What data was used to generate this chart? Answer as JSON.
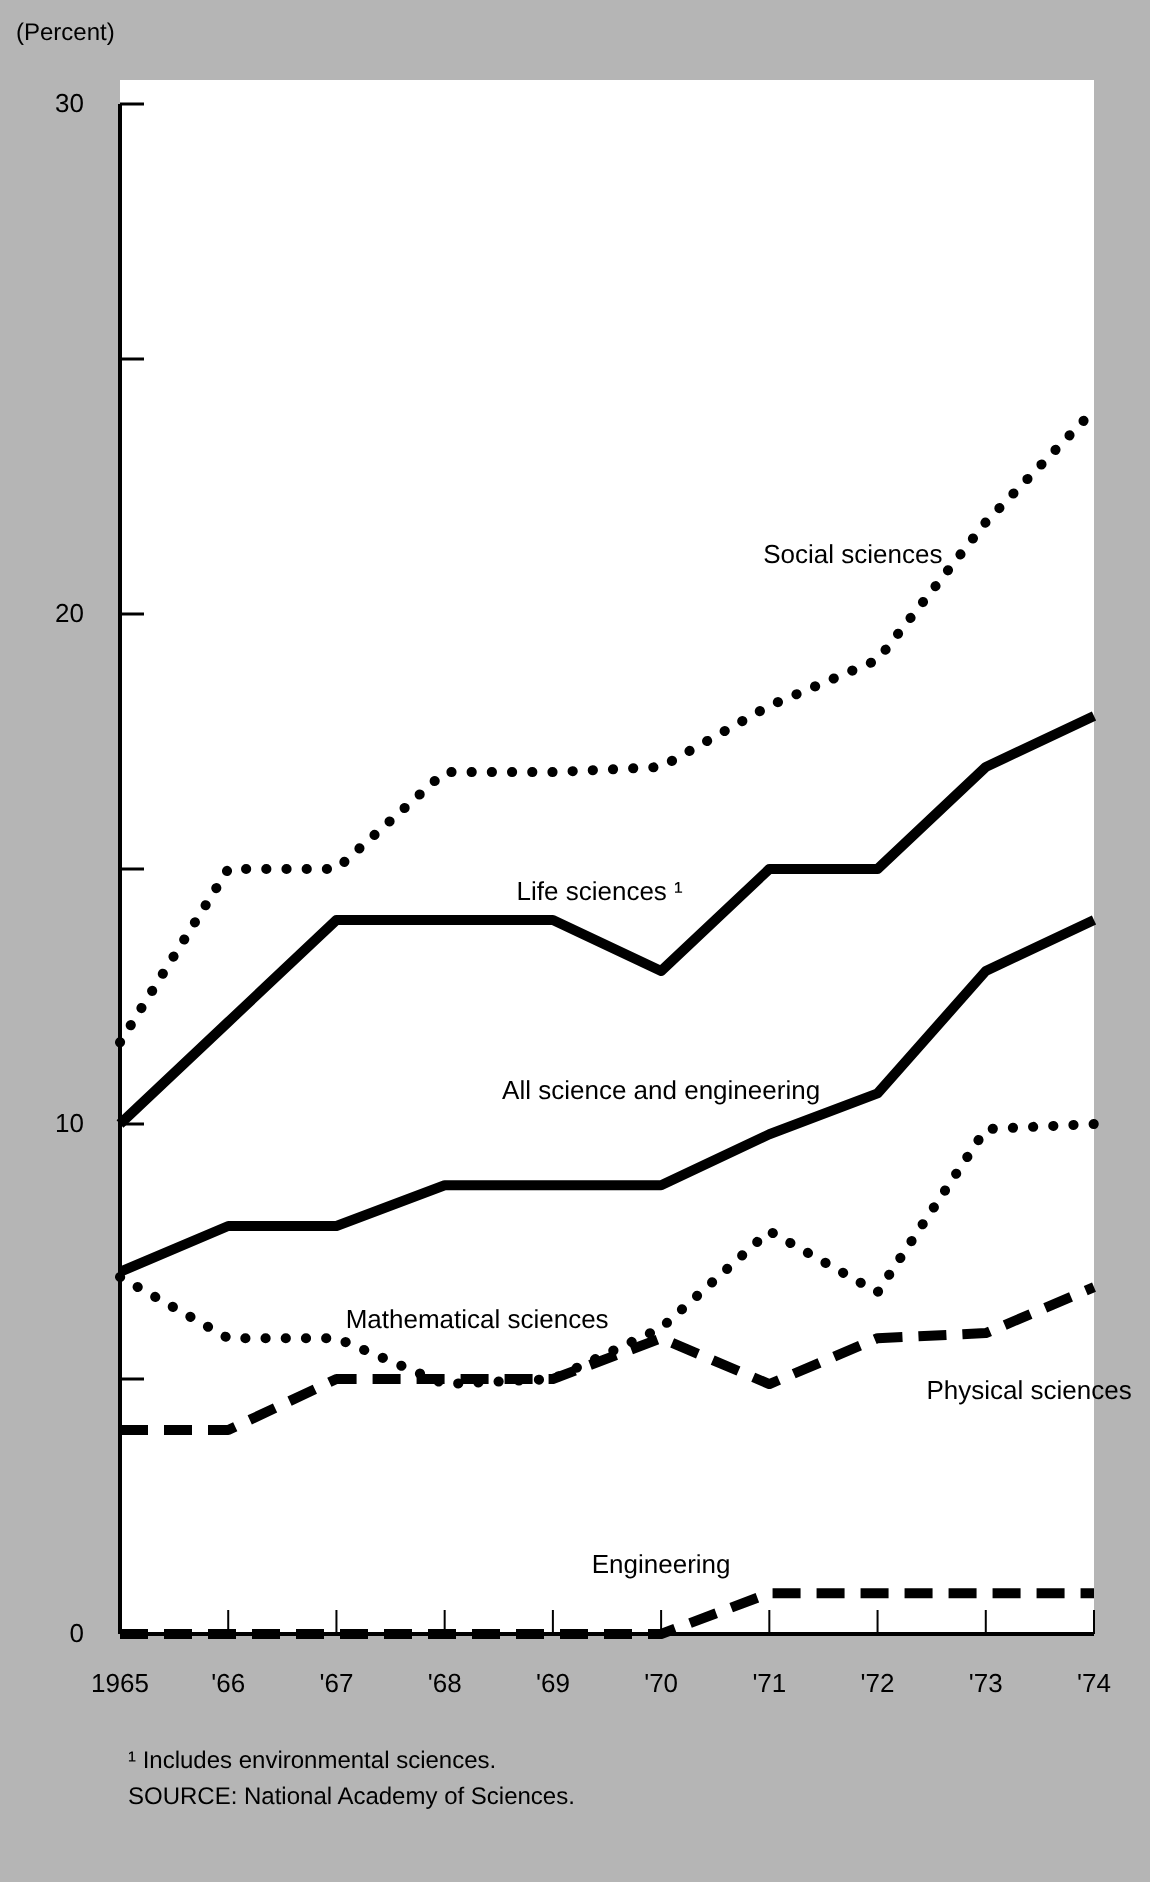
{
  "chart_data": {
    "type": "line",
    "ylabel": "(Percent)",
    "categories": [
      "1965",
      "'66",
      "'67",
      "'68",
      "'69",
      "'70",
      "'71",
      "'72",
      "'73",
      "'74"
    ],
    "ylim": [
      0,
      30
    ],
    "yticks": [
      0,
      {
        "value": 5,
        "label": null
      },
      10,
      {
        "value": 15,
        "label": null
      },
      20,
      {
        "value": 25,
        "label": null
      },
      30
    ],
    "grid": false,
    "legend": false,
    "marker": "none",
    "series": [
      {
        "name": "Social sciences",
        "color": "#000000",
        "line_style": "dotted",
        "values": [
          11.6,
          15,
          15,
          16.9,
          16.9,
          17,
          18.2,
          19.1,
          21.8,
          24
        ]
      },
      {
        "name": "Life sciences ¹",
        "color": "#000000",
        "line_style": "solid",
        "values": [
          10,
          12,
          14,
          14,
          14,
          13,
          15,
          15,
          17,
          18
        ]
      },
      {
        "name": "All science and engineering",
        "color": "#000000",
        "line_style": "solid",
        "values": [
          7.1,
          8,
          8,
          8.8,
          8.8,
          8.8,
          9.8,
          10.6,
          13,
          14
        ]
      },
      {
        "name": "Mathematical sciences",
        "color": "#000000",
        "line_style": "dotted",
        "values": [
          7,
          5.8,
          5.8,
          4.9,
          5,
          6,
          7.9,
          6.7,
          9.9,
          10
        ]
      },
      {
        "name": "Physical sciences",
        "color": "#000000",
        "line_style": "dashed",
        "values": [
          4,
          4,
          5,
          5,
          5,
          5.8,
          4.9,
          5.8,
          5.9,
          6.8
        ]
      },
      {
        "name": "Engineering",
        "color": "#000000",
        "line_style": "dashed",
        "values": [
          0,
          0,
          0,
          0,
          0,
          0,
          0.8,
          0.8,
          0.8,
          0.8
        ]
      }
    ],
    "annotations": [
      "¹ Includes environmental sciences.",
      "SOURCE: National Academy of Sciences."
    ]
  }
}
